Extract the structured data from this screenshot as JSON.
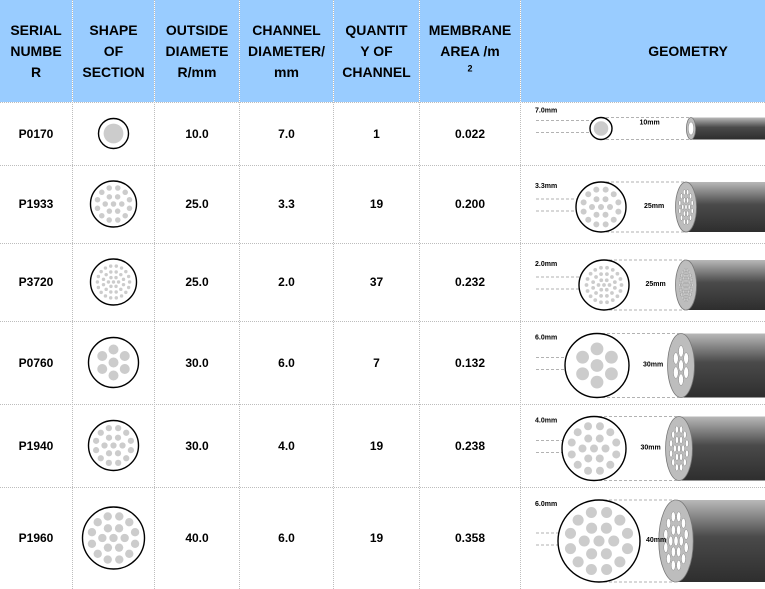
{
  "headers": {
    "serial": [
      "SERIAL",
      "NUMBE",
      "R"
    ],
    "shape": [
      "SHAPE",
      "OF",
      "SECTION"
    ],
    "outside": [
      "OUTSIDE",
      "DIAMETE",
      "R/mm"
    ],
    "channel_diameter": [
      "CHANNEL",
      "DIAMETER/",
      "mm"
    ],
    "quantity": [
      "QUANTIT",
      "Y OF",
      "CHANNEL"
    ],
    "membrane_area": [
      "MEMBRANE",
      "AREA /m"
    ],
    "membrane_area_sup": "2",
    "geometry": "GEOMETRY"
  },
  "rows": [
    {
      "serial": "P0170",
      "outside": "10.0",
      "channel": "7.0",
      "quantity": "1",
      "area": "0.022",
      "channel_label": "7.0mm",
      "outside_label": "10mm"
    },
    {
      "serial": "P1933",
      "outside": "25.0",
      "channel": "3.3",
      "quantity": "19",
      "area": "0.200",
      "channel_label": "3.3mm",
      "outside_label": "25mm"
    },
    {
      "serial": "P3720",
      "outside": "25.0",
      "channel": "2.0",
      "quantity": "37",
      "area": "0.232",
      "channel_label": "2.0mm",
      "outside_label": "25mm"
    },
    {
      "serial": "P0760",
      "outside": "30.0",
      "channel": "6.0",
      "quantity": "7",
      "area": "0.132",
      "channel_label": "6.0mm",
      "outside_label": "30mm"
    },
    {
      "serial": "P1940",
      "outside": "30.0",
      "channel": "4.0",
      "quantity": "19",
      "area": "0.238",
      "channel_label": "4.0mm",
      "outside_label": "30mm"
    },
    {
      "serial": "P1960",
      "outside": "40.0",
      "channel": "6.0",
      "quantity": "19",
      "area": "0.358",
      "channel_label": "6.0mm",
      "outside_label": "40mm"
    }
  ],
  "colors": {
    "header_bg": "#99ccff",
    "hole": "#cccccc",
    "tube_dark": "#4a4a4a",
    "tube_light": "#b8b8b8"
  }
}
